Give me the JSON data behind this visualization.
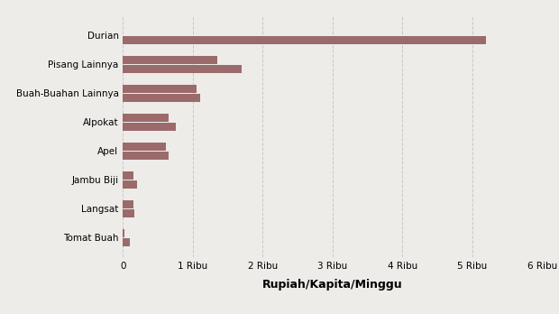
{
  "categories": [
    "Durian",
    "Pisang Lainnya",
    "Buah-Buahan Lainnya",
    "Alpokat",
    "Apel",
    "Jambu Biji",
    "Langsat",
    "Tomat Buah"
  ],
  "series1": [
    5200,
    1700,
    1100,
    750,
    650,
    200,
    160,
    100
  ],
  "series2": [
    0,
    1350,
    1050,
    650,
    620,
    155,
    150,
    18
  ],
  "bar_color": "#9b6b6b",
  "background_color": "#eeece9",
  "xlabel": "Rupiah/Kapita/Minggu",
  "xlim": [
    0,
    6000
  ],
  "xtick_values": [
    0,
    1000,
    2000,
    3000,
    4000,
    5000,
    6000
  ],
  "xtick_labels": [
    "0",
    "1 Ribu",
    "2 Ribu",
    "3 Ribu",
    "4 Ribu",
    "5 Ribu",
    "6 Ribu"
  ],
  "bar_height": 0.28,
  "bar_gap": 0.05,
  "grid_color": "#c8c8c8",
  "label_fontsize": 7.5,
  "xlabel_fontsize": 9,
  "tick_fontsize": 7.5
}
